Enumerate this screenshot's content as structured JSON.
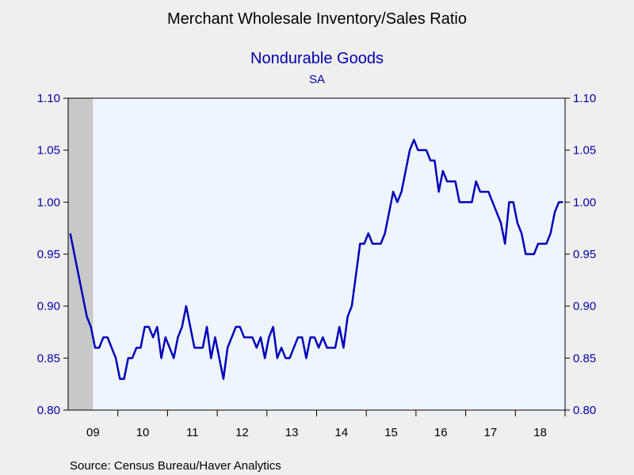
{
  "chart_data": {
    "type": "line",
    "title": "Merchant Wholesale Inventory/Sales Ratio",
    "subtitle": "Nondurable Goods",
    "note": "SA",
    "source": "Source:  Census Bureau/Haver Analytics",
    "ylim": [
      0.8,
      1.1
    ],
    "y_ticks": [
      "0.80",
      "0.85",
      "0.90",
      "0.95",
      "1.00",
      "1.05",
      "1.10"
    ],
    "x_tick_labels": [
      "09",
      "10",
      "11",
      "12",
      "13",
      "14",
      "15",
      "16",
      "17",
      "18"
    ],
    "recession_shading": {
      "start": "2009-01",
      "end": "2009-06",
      "color": "#c8c8c8"
    },
    "series": [
      {
        "color": "#0000bb",
        "start": "2009-01",
        "frequency": "monthly",
        "values": [
          0.97,
          0.95,
          0.93,
          0.91,
          0.89,
          0.88,
          0.86,
          0.86,
          0.87,
          0.87,
          0.86,
          0.85,
          0.83,
          0.83,
          0.85,
          0.85,
          0.86,
          0.86,
          0.88,
          0.88,
          0.87,
          0.88,
          0.85,
          0.87,
          0.86,
          0.85,
          0.87,
          0.88,
          0.9,
          0.88,
          0.86,
          0.86,
          0.86,
          0.88,
          0.85,
          0.87,
          0.85,
          0.83,
          0.86,
          0.87,
          0.88,
          0.88,
          0.87,
          0.87,
          0.87,
          0.86,
          0.87,
          0.85,
          0.87,
          0.88,
          0.85,
          0.86,
          0.85,
          0.85,
          0.86,
          0.87,
          0.87,
          0.85,
          0.87,
          0.87,
          0.86,
          0.87,
          0.86,
          0.86,
          0.86,
          0.88,
          0.86,
          0.89,
          0.9,
          0.93,
          0.96,
          0.96,
          0.97,
          0.96,
          0.96,
          0.96,
          0.97,
          0.99,
          1.01,
          1.0,
          1.01,
          1.03,
          1.05,
          1.06,
          1.05,
          1.05,
          1.05,
          1.04,
          1.04,
          1.01,
          1.03,
          1.02,
          1.02,
          1.02,
          1.0,
          1.0,
          1.0,
          1.0,
          1.02,
          1.01,
          1.01,
          1.01,
          1.0,
          0.99,
          0.98,
          0.96,
          1.0,
          1.0,
          0.98,
          0.97,
          0.95,
          0.95,
          0.95,
          0.96,
          0.96,
          0.96,
          0.97,
          0.99,
          1.0,
          1.0
        ]
      }
    ]
  }
}
